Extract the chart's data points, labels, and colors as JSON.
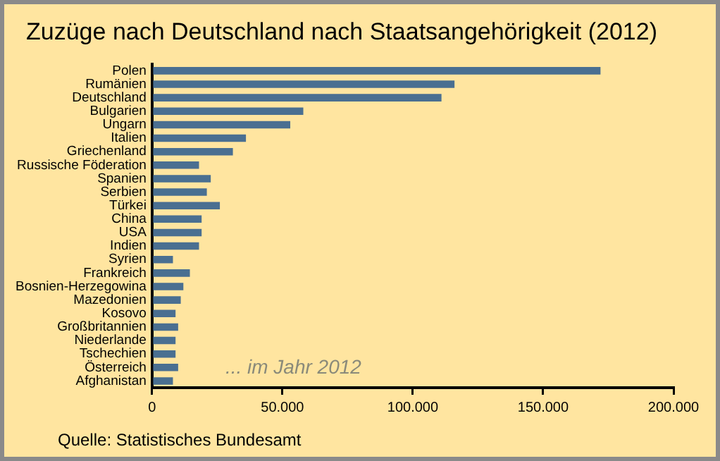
{
  "chart_data": {
    "type": "bar",
    "orientation": "horizontal",
    "title": "Zuzüge nach Deutschland nach Staatsangehörigkeit (2012)",
    "categories": [
      "Polen",
      "Rumänien",
      "Deutschland",
      "Bulgarien",
      "Ungarn",
      "Italien",
      "Griechenland",
      "Russische Föderation",
      "Spanien",
      "Serbien",
      "Türkei",
      "China",
      "USA",
      "Indien",
      "Syrien",
      "Frankreich",
      "Bosnien-Herzegowina",
      "Mazedonien",
      "Kosovo",
      "Großbritannien",
      "Niederlande",
      "Tschechien",
      "Österreich",
      "Afghanistan"
    ],
    "values": [
      172000,
      116000,
      111000,
      58000,
      53000,
      36000,
      31000,
      18000,
      22500,
      21000,
      26000,
      19000,
      19000,
      18000,
      8000,
      14500,
      12000,
      11000,
      9000,
      10000,
      9000,
      9000,
      10000,
      8000
    ],
    "color": "#4a6f91",
    "xlim": [
      0,
      200000
    ],
    "xticks": [
      0,
      {
        "value": 50000,
        "label": "50.000"
      },
      {
        "value": 100000,
        "label": "100.000"
      },
      {
        "value": 150000,
        "label": "150.000"
      },
      {
        "value": 200000,
        "label": "200.000"
      }
    ],
    "grid": false,
    "legend": false,
    "annotations": [
      "... im Jahr 2012",
      "Quelle: Statistisches Bundesamt"
    ]
  }
}
